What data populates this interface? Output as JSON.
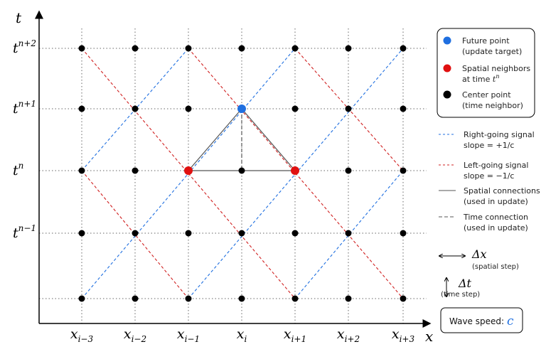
{
  "axes": {
    "x": "x",
    "t": "t"
  },
  "time_labels": [
    {
      "base": "t",
      "sup": "n+2"
    },
    {
      "base": "t",
      "sup": "n+1"
    },
    {
      "base": "t",
      "sup": "n"
    },
    {
      "base": "t",
      "sup": "n−1"
    }
  ],
  "space_labels": [
    {
      "base": "x",
      "sub": "i−3"
    },
    {
      "base": "x",
      "sub": "i−2"
    },
    {
      "base": "x",
      "sub": "i−1"
    },
    {
      "base": "x",
      "sub": "i"
    },
    {
      "base": "x",
      "sub": "i+1"
    },
    {
      "base": "x",
      "sub": "i+2"
    },
    {
      "base": "x",
      "sub": "i+3"
    }
  ],
  "legend": {
    "points": [
      {
        "label": "Future point",
        "detail": "(update target)"
      },
      {
        "label": "Spatial neighbors",
        "detail": "at time ",
        "detail_var": "t",
        "detail_sup": "n"
      },
      {
        "label": "Center point",
        "detail": "(time neighbor)"
      }
    ],
    "lines": [
      {
        "label": "Right-going signal",
        "detail": "slope = +1/c"
      },
      {
        "label": "Left-going signal",
        "detail": "slope = −1/c"
      },
      {
        "label": "Spatial connections",
        "detail": "(used in update)"
      },
      {
        "label": "Time connection",
        "detail": "(used in update)"
      }
    ]
  },
  "steps": {
    "dx": "Δx",
    "dx_detail": "(spatial step)",
    "dt": "Δt",
    "dt_detail": "(time step)"
  },
  "wave_speed": {
    "label": "Wave speed:",
    "symbol": "c"
  }
}
